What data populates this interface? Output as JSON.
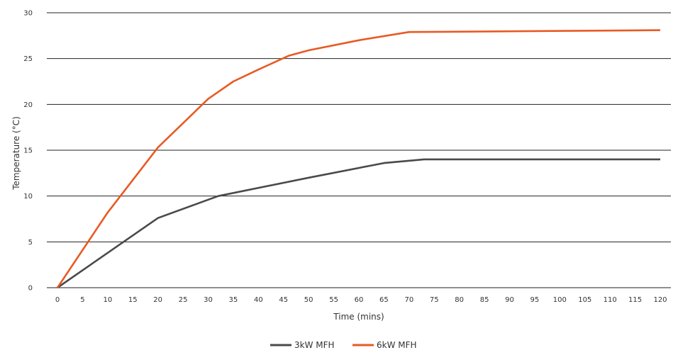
{
  "chart_data": {
    "type": "line",
    "title": "",
    "xlabel": "Time (mins)",
    "ylabel": "Temperature (°C)",
    "xlim": [
      0,
      120
    ],
    "ylim": [
      0,
      30
    ],
    "x_ticks": [
      0,
      5,
      10,
      15,
      20,
      25,
      30,
      35,
      40,
      45,
      50,
      55,
      60,
      65,
      70,
      75,
      80,
      85,
      90,
      95,
      100,
      105,
      110,
      115,
      120
    ],
    "y_ticks": [
      0,
      5,
      10,
      15,
      20,
      25,
      30
    ],
    "grid": "horizontal",
    "legend_position": "bottom",
    "series": [
      {
        "name": "3kW MFH",
        "color": "#4a4a4a",
        "points": [
          [
            0,
            0
          ],
          [
            20,
            7.6
          ],
          [
            32,
            10
          ],
          [
            50,
            12
          ],
          [
            65,
            13.6
          ],
          [
            73,
            14
          ],
          [
            120,
            14
          ]
        ]
      },
      {
        "name": "6kW MFH",
        "color": "#e85a24",
        "points": [
          [
            0,
            0
          ],
          [
            10,
            8.2
          ],
          [
            20,
            15.3
          ],
          [
            30,
            20.6
          ],
          [
            35,
            22.5
          ],
          [
            40,
            23.8
          ],
          [
            46,
            25.3
          ],
          [
            50,
            25.9
          ],
          [
            60,
            27
          ],
          [
            70,
            27.9
          ],
          [
            120,
            28.1
          ]
        ]
      }
    ]
  }
}
